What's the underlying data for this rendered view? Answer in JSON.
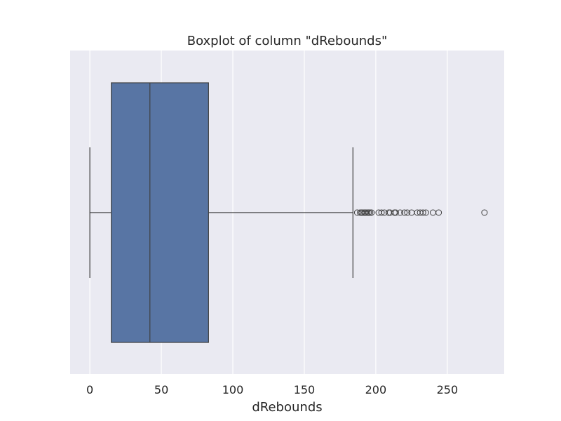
{
  "chart_data": {
    "type": "box",
    "title": "Boxplot of column \"dRebounds\"",
    "xlabel": "dRebounds",
    "ylabel": "",
    "xlim": [
      -13.8,
      289.8
    ],
    "xticks": [
      0,
      50,
      100,
      150,
      200,
      250
    ],
    "xtick_labels": [
      "0",
      "50",
      "100",
      "150",
      "200",
      "250"
    ],
    "grid": true,
    "orientation": "horizontal",
    "box": {
      "whisker_low": 0,
      "q1": 15,
      "median": 42,
      "q3": 83,
      "whisker_high": 184
    },
    "outliers": [
      187,
      189,
      190,
      191,
      192,
      193,
      194,
      195,
      196,
      197,
      202,
      204,
      206,
      209,
      210,
      213,
      214,
      217,
      220,
      222,
      225,
      229,
      231,
      233,
      235,
      240,
      244,
      276
    ]
  },
  "colors": {
    "plot_background": "#EAEAF2",
    "box_fill": "#5875A4",
    "line": "#3F3F3F",
    "grid": "#FFFFFF",
    "text": "#262626"
  }
}
